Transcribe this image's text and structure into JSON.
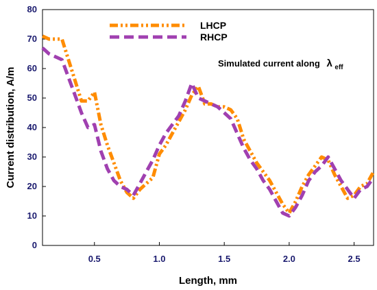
{
  "chart_data": {
    "type": "line",
    "title": "",
    "xlabel": "Length, mm",
    "ylabel": "Current distribution, A/m",
    "xlim": [
      0.1,
      2.65
    ],
    "ylim": [
      0,
      80
    ],
    "xticks": [
      0.5,
      1.0,
      1.5,
      2.0,
      2.5
    ],
    "xtick_labels": [
      "0.5",
      "1.0",
      "1.5",
      "2.0",
      "2.5"
    ],
    "yticks": [
      0,
      10,
      20,
      30,
      40,
      50,
      60,
      70,
      80
    ],
    "ytick_labels": [
      "0",
      "10",
      "20",
      "30",
      "40",
      "50",
      "60",
      "70",
      "80"
    ],
    "grid": false,
    "legend_position": "top-center",
    "annotation": {
      "text": "Simulated current along",
      "symbol": "λ",
      "subscript": "eff"
    },
    "series": [
      {
        "name": "LHCP",
        "color": "#ff8c00",
        "dash": "dash-dot-dot",
        "x": [
          0.1,
          0.15,
          0.25,
          0.3,
          0.35,
          0.4,
          0.45,
          0.5,
          0.55,
          0.6,
          0.65,
          0.7,
          0.75,
          0.8,
          0.85,
          0.9,
          0.95,
          1.0,
          1.05,
          1.1,
          1.15,
          1.2,
          1.25,
          1.3,
          1.35,
          1.4,
          1.45,
          1.5,
          1.55,
          1.6,
          1.65,
          1.7,
          1.75,
          1.8,
          1.85,
          1.9,
          1.95,
          2.0,
          2.05,
          2.1,
          2.15,
          2.2,
          2.25,
          2.3,
          2.35,
          2.4,
          2.45,
          2.5,
          2.55,
          2.6,
          2.65
        ],
        "values": [
          71,
          70,
          70,
          63,
          56,
          49,
          49,
          52,
          41,
          34,
          28,
          22,
          18,
          16,
          19,
          21,
          23,
          31,
          34,
          38,
          42,
          46,
          51,
          54,
          48,
          48,
          47,
          47,
          46,
          43,
          36,
          32,
          28,
          25,
          22,
          18,
          14,
          11,
          15,
          20,
          24,
          27,
          30,
          29,
          24,
          20,
          16,
          17,
          20,
          21,
          25
        ]
      },
      {
        "name": "RHCP",
        "color": "#a040b0",
        "dash": "dash",
        "x": [
          0.1,
          0.15,
          0.25,
          0.3,
          0.35,
          0.4,
          0.45,
          0.5,
          0.55,
          0.6,
          0.65,
          0.7,
          0.75,
          0.8,
          0.85,
          0.9,
          0.95,
          1.0,
          1.05,
          1.1,
          1.15,
          1.2,
          1.25,
          1.3,
          1.35,
          1.4,
          1.45,
          1.5,
          1.55,
          1.6,
          1.65,
          1.7,
          1.75,
          1.8,
          1.85,
          1.9,
          1.95,
          2.0,
          2.05,
          2.1,
          2.15,
          2.2,
          2.25,
          2.3,
          2.35,
          2.4,
          2.45,
          2.5,
          2.55,
          2.6,
          2.65
        ],
        "values": [
          67,
          65,
          63,
          57,
          51,
          45,
          40,
          41,
          32,
          26,
          22,
          20,
          19,
          17,
          21,
          25,
          29,
          34,
          38,
          41,
          44,
          49,
          55,
          50,
          49,
          48,
          47,
          45,
          43,
          38,
          33,
          29,
          26,
          22,
          19,
          15,
          11,
          10,
          13,
          17,
          22,
          25,
          27,
          30,
          26,
          22,
          19,
          16,
          19,
          20,
          23
        ]
      }
    ]
  }
}
